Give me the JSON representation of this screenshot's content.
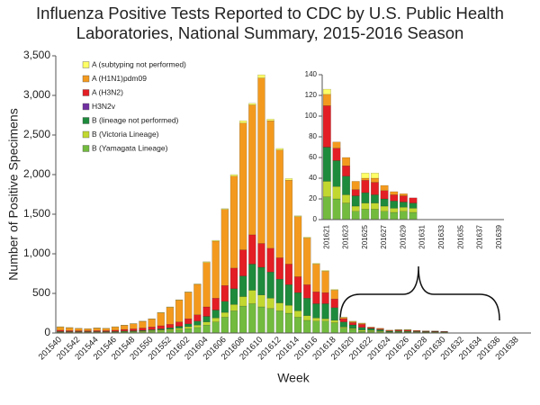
{
  "chart_data": [
    {
      "type": "bar",
      "stacked": true,
      "title": "Influenza Positive Tests Reported to CDC by U.S. Public Health Laboratories, National Summary, 2015-2016 Season",
      "xlabel": "Week",
      "ylabel": "Number of Positive Specimens",
      "legend": "upper left",
      "categories": [
        "201540",
        null,
        "201542",
        null,
        "201544",
        null,
        "201546",
        null,
        "201548",
        null,
        "201550",
        null,
        "201552",
        null,
        "201602",
        null,
        "201604",
        null,
        "201606",
        null,
        "201608",
        null,
        "201610",
        null,
        "201612",
        null,
        "201614",
        null,
        "201616",
        null,
        "201618",
        null,
        "201620",
        null,
        "201622",
        null,
        "201624",
        null,
        "201626",
        null,
        "201628",
        null,
        "201630",
        null,
        "201632",
        null,
        "201634",
        null,
        "201636",
        null,
        "201638",
        null
      ],
      "ylim": [
        0,
        3500
      ],
      "yticks": [
        0,
        500,
        {
          "value": 1000,
          "label": "1,000"
        },
        {
          "value": 1500,
          "label": "1,500"
        },
        {
          "value": 2000,
          "label": "2,000"
        },
        {
          "value": 2500,
          "label": "2,500"
        },
        {
          "value": 3000,
          "label": "3,000"
        },
        {
          "value": 3500,
          "label": "3,500"
        }
      ],
      "series": [
        {
          "name": "A (subtyping not performed)",
          "color": "#ffff66",
          "values": [
            5,
            3,
            2,
            2,
            3,
            2,
            3,
            3,
            3,
            3,
            3,
            5,
            5,
            5,
            5,
            5,
            10,
            10,
            10,
            20,
            30,
            20,
            40,
            20,
            20,
            20,
            10,
            10,
            10,
            10,
            10,
            5,
            5,
            5,
            0,
            0,
            0,
            5,
            5,
            0,
            0,
            0,
            0,
            0,
            0,
            0,
            0,
            0,
            0,
            0,
            0,
            0
          ]
        },
        {
          "name": "A (H1N1)pdm09",
          "color": "#f39a1e",
          "values": [
            40,
            37,
            30,
            25,
            32,
            28,
            42,
            52,
            64,
            84,
            100,
            163,
            215,
            275,
            335,
            385,
            560,
            720,
            960,
            1160,
            1600,
            1640,
            2090,
            1610,
            1360,
            1060,
            760,
            590,
            350,
            270,
            110,
            15,
            13,
            11,
            6,
            8,
            8,
            2,
            4,
            5,
            3,
            2,
            0,
            0,
            0,
            0,
            0,
            0,
            0,
            0,
            0,
            0
          ]
        },
        {
          "name": "A (H3N2)",
          "color": "#e31e24",
          "values": [
            15,
            12,
            10,
            10,
            12,
            12,
            15,
            20,
            25,
            30,
            35,
            40,
            45,
            55,
            65,
            80,
            120,
            150,
            200,
            260,
            330,
            370,
            300,
            300,
            270,
            260,
            200,
            170,
            150,
            140,
            110,
            40,
            30,
            40,
            12,
            10,
            6,
            12,
            12,
            8,
            6,
            6,
            5,
            0,
            0,
            0,
            0,
            0,
            0,
            0,
            0,
            0
          ]
        },
        {
          "name": "H3N2v",
          "color": "#7030a0",
          "values": [
            0,
            0,
            0,
            0,
            0,
            0,
            0,
            0,
            0,
            0,
            0,
            0,
            0,
            0,
            0,
            0,
            0,
            0,
            0,
            0,
            0,
            0,
            0,
            0,
            0,
            0,
            0,
            0,
            0,
            0,
            0,
            0,
            0,
            0,
            0,
            0,
            0,
            0,
            0,
            0,
            0,
            0,
            0,
            0,
            0,
            0,
            0,
            0,
            0,
            0,
            0,
            0
          ]
        },
        {
          "name": "B (lineage not performed)",
          "color": "#1e8a3c",
          "values": [
            5,
            5,
            5,
            5,
            5,
            5,
            5,
            8,
            8,
            10,
            12,
            15,
            20,
            25,
            35,
            50,
            70,
            100,
            140,
            200,
            260,
            330,
            350,
            330,
            300,
            260,
            230,
            220,
            180,
            190,
            160,
            65,
            45,
            33,
            25,
            18,
            10,
            10,
            8,
            7,
            7,
            5,
            5,
            0,
            0,
            0,
            0,
            0,
            0,
            0,
            0,
            0
          ]
        },
        {
          "name": "B (Victoria Lineage)",
          "color": "#c2d830",
          "values": [
            5,
            5,
            5,
            5,
            5,
            5,
            5,
            5,
            5,
            8,
            10,
            12,
            15,
            20,
            25,
            30,
            40,
            50,
            60,
            80,
            120,
            170,
            150,
            130,
            100,
            100,
            80,
            60,
            40,
            30,
            30,
            15,
            12,
            15,
            12,
            8,
            5,
            6,
            6,
            5,
            4,
            4,
            4,
            0,
            0,
            0,
            0,
            0,
            0,
            0,
            0,
            0
          ]
        },
        {
          "name": "B (Yamagata Lineage)",
          "color": "#72bb3e",
          "values": [
            10,
            8,
            8,
            8,
            8,
            8,
            10,
            12,
            15,
            15,
            20,
            25,
            30,
            40,
            55,
            70,
            100,
            140,
            200,
            280,
            340,
            370,
            330,
            310,
            280,
            250,
            200,
            160,
            150,
            150,
            130,
            60,
            45,
            22,
            20,
            16,
            8,
            10,
            10,
            8,
            7,
            8,
            7,
            0,
            0,
            0,
            0,
            0,
            0,
            0,
            0,
            0
          ]
        }
      ]
    },
    {
      "type": "bar",
      "stacked": true,
      "categories": [
        "201621",
        null,
        "201623",
        null,
        "201625",
        null,
        "201627",
        null,
        "201629",
        null,
        "201631",
        null,
        "201633",
        null,
        "201635",
        null,
        "201637",
        null,
        "201639"
      ],
      "ylim": [
        0,
        140
      ],
      "yticks": [
        0,
        20,
        40,
        60,
        80,
        100,
        120,
        140
      ],
      "series": [
        {
          "name": "A (subtyping not performed)",
          "color": "#ffff66",
          "values": [
            5,
            0,
            0,
            0,
            5,
            5,
            0,
            0,
            0,
            0,
            0,
            0,
            0,
            0,
            0,
            0,
            0,
            0,
            0
          ]
        },
        {
          "name": "A (H1N1)pdm09",
          "color": "#f39a1e",
          "values": [
            11,
            6,
            8,
            8,
            2,
            4,
            5,
            3,
            2,
            0,
            0,
            0,
            0,
            0,
            0,
            0,
            0,
            0,
            0
          ]
        },
        {
          "name": "A (H3N2)",
          "color": "#e31e24",
          "values": [
            40,
            12,
            10,
            6,
            12,
            12,
            8,
            6,
            6,
            5,
            0,
            0,
            0,
            0,
            0,
            0,
            0,
            0,
            0
          ]
        },
        {
          "name": "H3N2v",
          "color": "#7030a0",
          "values": [
            0,
            0,
            0,
            0,
            0,
            0,
            0,
            0,
            0,
            0,
            0,
            0,
            0,
            0,
            0,
            0,
            0,
            0,
            0
          ]
        },
        {
          "name": "B (lineage not performed)",
          "color": "#1e8a3c",
          "values": [
            33,
            25,
            18,
            10,
            10,
            8,
            7,
            7,
            5,
            5,
            0,
            0,
            0,
            0,
            0,
            0,
            0,
            0,
            0
          ]
        },
        {
          "name": "B (Victoria Lineage)",
          "color": "#c2d830",
          "values": [
            15,
            12,
            8,
            5,
            6,
            6,
            5,
            4,
            4,
            4,
            0,
            0,
            0,
            0,
            0,
            0,
            0,
            0,
            0
          ]
        },
        {
          "name": "B (Yamagata Lineage)",
          "color": "#72bb3e",
          "values": [
            22,
            20,
            16,
            8,
            10,
            10,
            8,
            7,
            8,
            7,
            0,
            0,
            0,
            0,
            0,
            0,
            0,
            0,
            0
          ]
        }
      ]
    }
  ]
}
